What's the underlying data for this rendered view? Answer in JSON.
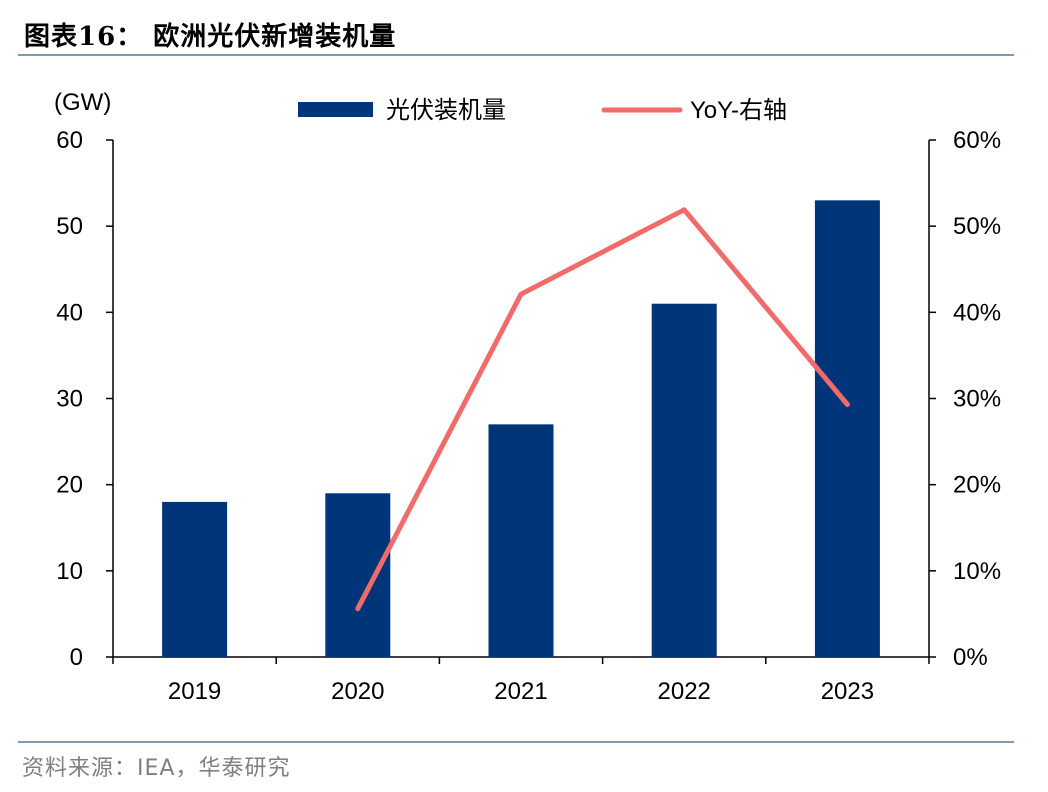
{
  "header": {
    "title": "图表16：  欧洲光伏新增装机量"
  },
  "footer": {
    "source": "资料来源：IEA，华泰研究"
  },
  "colors": {
    "bar": "#003679",
    "line": "#f26b6b",
    "rule": "#7f9cab",
    "source_text": "#7f7f7f"
  },
  "chart_data": {
    "type": "bar",
    "categories": [
      "2019",
      "2020",
      "2021",
      "2022",
      "2023"
    ],
    "series": [
      {
        "name": "光伏装机量",
        "type": "bar",
        "axis": "left",
        "values": [
          18,
          19,
          27,
          41,
          53
        ]
      },
      {
        "name": "YoY-右轴",
        "type": "line",
        "axis": "right",
        "values": [
          null,
          5.6,
          42.1,
          51.9,
          29.3
        ]
      }
    ],
    "y_left": {
      "label": "(GW)",
      "range": [
        0,
        60
      ],
      "ticks": [
        "0",
        "10",
        "20",
        "30",
        "40",
        "50",
        "60"
      ]
    },
    "y_right": {
      "label": "",
      "range": [
        0,
        60
      ],
      "ticks": [
        "0%",
        "10%",
        "20%",
        "30%",
        "40%",
        "50%",
        "60%"
      ]
    },
    "legend_position": "top-center",
    "grid": false
  }
}
